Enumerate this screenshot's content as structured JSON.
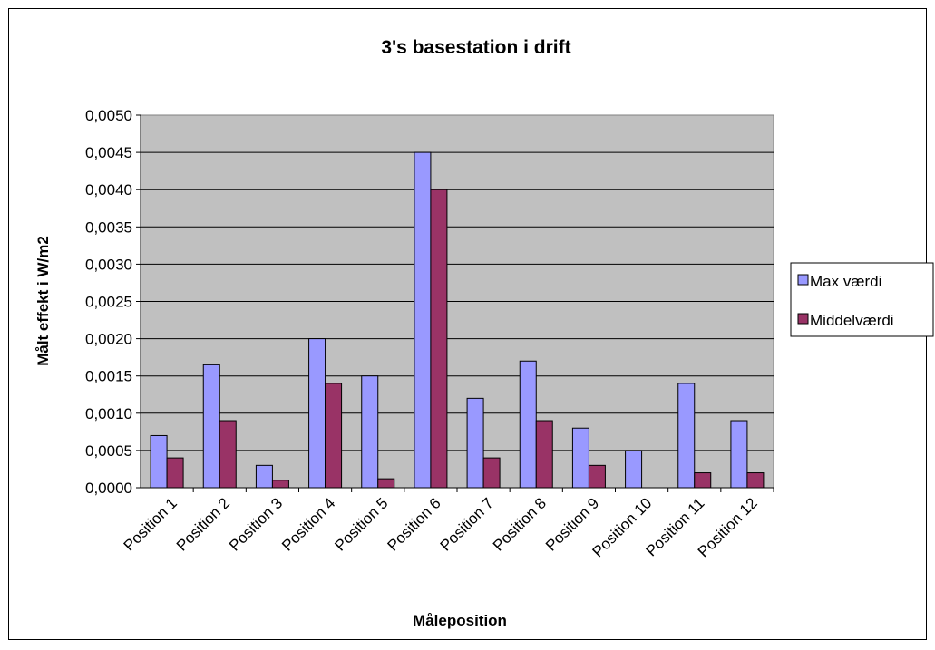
{
  "chart_data": {
    "type": "bar",
    "title": "3's basestation i drift",
    "xlabel": "Måleposition",
    "ylabel": "Målt effekt i W/m2",
    "categories": [
      "Position 1",
      "Position 2",
      "Position 3",
      "Position 4",
      "Position 5",
      "Position 6",
      "Position 7",
      "Position 8",
      "Position 9",
      "Position 10",
      "Position 11",
      "Position 12"
    ],
    "series": [
      {
        "name": "Max værdi",
        "color": "#9999ff",
        "values": [
          0.0007,
          0.00165,
          0.0003,
          0.002,
          0.0015,
          0.0045,
          0.0012,
          0.0017,
          0.0008,
          0.0005,
          0.0014,
          0.0009
        ]
      },
      {
        "name": "Middelværdi",
        "color": "#993366",
        "values": [
          0.0004,
          0.0009,
          0.0001,
          0.0014,
          0.00012,
          0.004,
          0.0004,
          0.0009,
          0.0003,
          0.0,
          0.0002,
          0.0002
        ]
      }
    ],
    "ylim": [
      0,
      0.005
    ],
    "yticks": [
      "0,0000",
      "0,0005",
      "0,0010",
      "0,0015",
      "0,0020",
      "0,0025",
      "0,0030",
      "0,0035",
      "0,0040",
      "0,0045",
      "0,0050"
    ],
    "plot_background": "#c0c0c0",
    "grid": true,
    "legend_position": "right"
  }
}
